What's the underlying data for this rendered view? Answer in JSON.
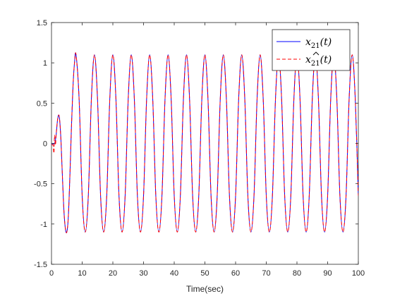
{
  "chart_data": {
    "type": "line",
    "title": "",
    "xlabel": "Time(sec)",
    "ylabel": "",
    "xlim": [
      0,
      100
    ],
    "ylim": [
      -1.5,
      1.5
    ],
    "xticks": [
      0,
      10,
      20,
      30,
      40,
      50,
      60,
      70,
      80,
      90,
      100
    ],
    "yticks": [
      -1.5,
      -1,
      -0.5,
      0,
      0.5,
      1,
      1.5
    ],
    "xtick_labels": [
      "0",
      "10",
      "20",
      "30",
      "40",
      "50",
      "60",
      "70",
      "80",
      "90",
      "100"
    ],
    "ytick_labels": [
      "-1.5",
      "-1",
      "-0.5",
      "0",
      "0.5",
      "1",
      "1.5"
    ],
    "grid": false,
    "legend_position": "top-right",
    "series": [
      {
        "name": "x21(t)",
        "legend_main": "x",
        "legend_sub": "21",
        "legend_tail": "(t)",
        "color": "#0000ff",
        "style": "solid",
        "x": [
          0,
          1,
          1.5,
          2,
          2.5,
          3,
          3.5,
          4,
          4.5,
          5,
          5.5,
          6,
          6.5,
          7,
          7.5,
          8,
          9,
          10,
          11,
          12,
          13,
          14,
          15,
          16,
          17,
          18,
          19,
          20,
          21,
          22,
          23,
          24,
          25,
          26,
          27,
          28,
          29,
          30,
          31,
          32,
          33,
          34,
          35,
          36,
          37,
          38,
          39,
          40,
          41,
          42,
          43,
          44,
          45,
          46,
          47,
          48,
          49,
          50,
          51,
          52,
          53,
          54,
          55,
          56,
          57,
          58,
          59,
          60,
          61,
          62,
          63,
          64,
          65,
          66,
          67,
          68,
          69,
          70,
          71,
          72,
          73,
          74,
          75,
          76,
          77,
          78,
          79,
          80,
          81,
          82,
          83,
          84,
          85,
          86,
          87,
          88,
          89,
          90,
          91,
          92,
          93,
          94,
          95,
          96,
          97,
          98,
          99,
          100
        ],
        "y": [
          0,
          0,
          0.1,
          0.3,
          0.34,
          0.1,
          -0.35,
          -0.8,
          -1.05,
          -1.1,
          -0.9,
          -0.4,
          0.2,
          0.7,
          1.0,
          1.1,
          0.55,
          -0.65,
          -1.1,
          -0.65,
          0.55,
          1.1,
          0.55,
          -0.65,
          -1.1,
          -0.65,
          0.55,
          1.1,
          0.55,
          -0.65,
          -1.1,
          -0.65,
          0.55,
          1.1,
          0.55,
          -0.65,
          -1.1,
          -0.65,
          0.55,
          1.1,
          0.55,
          -0.65,
          -1.1,
          -0.65,
          0.55,
          1.1,
          0.55,
          -0.65,
          -1.1,
          -0.65,
          0.55,
          1.1,
          0.55,
          -0.65,
          -1.1,
          -0.65,
          0.55,
          1.1,
          0.55,
          -0.65,
          -1.1,
          -0.65,
          0.55,
          1.1,
          0.55,
          -0.65,
          -1.1,
          -0.65,
          0.55,
          1.1,
          0.55,
          -0.65,
          -1.1,
          -0.65,
          0.55,
          1.1,
          0.55,
          -0.65,
          -1.1,
          -0.65,
          0.55,
          1.1,
          0.55,
          -0.65,
          -1.1,
          -0.65,
          0.55,
          1.1,
          0.55,
          -0.65,
          -1.1,
          -0.65,
          0.55,
          1.1,
          0.55,
          -0.65,
          -1.1,
          -0.65,
          0.55,
          1.1,
          0.55,
          -0.65,
          -1.1,
          -0.65,
          0.55,
          1.1,
          0.55,
          -0.65
        ]
      },
      {
        "name": "x21hat(t)",
        "legend_main": "x",
        "legend_sub": "21",
        "legend_tail": "(t)",
        "color": "#ff0000",
        "style": "dashed",
        "x": [
          0,
          0.5,
          0.8,
          1,
          1.3,
          1.5,
          2,
          2.5,
          3,
          3.5,
          4,
          4.5,
          5,
          5.5,
          6,
          6.5,
          7,
          7.5,
          8,
          9,
          10,
          11,
          12,
          13,
          14,
          15,
          16,
          17,
          18,
          19,
          20,
          21,
          22,
          23,
          24,
          25,
          26,
          27,
          28,
          29,
          30,
          31,
          32,
          33,
          34,
          35,
          36,
          37,
          38,
          39,
          40,
          41,
          42,
          43,
          44,
          45,
          46,
          47,
          48,
          49,
          50,
          51,
          52,
          53,
          54,
          55,
          56,
          57,
          58,
          59,
          60,
          61,
          62,
          63,
          64,
          65,
          66,
          67,
          68,
          69,
          70,
          71,
          72,
          73,
          74,
          75,
          76,
          77,
          78,
          79,
          80,
          81,
          82,
          83,
          84,
          85,
          86,
          87,
          88,
          89,
          90,
          91,
          92,
          93,
          94,
          95,
          96,
          97,
          98,
          99,
          100
        ],
        "y": [
          -0.02,
          -0.02,
          -0.12,
          0.1,
          -0.02,
          0.1,
          0.3,
          0.34,
          0.1,
          -0.35,
          -0.8,
          -1.05,
          -1.1,
          -0.9,
          -0.4,
          0.2,
          0.7,
          1.0,
          1.1,
          0.55,
          -0.65,
          -1.1,
          -0.65,
          0.55,
          1.1,
          0.55,
          -0.65,
          -1.1,
          -0.65,
          0.55,
          1.1,
          0.55,
          -0.65,
          -1.1,
          -0.65,
          0.55,
          1.1,
          0.55,
          -0.65,
          -1.1,
          -0.65,
          0.55,
          1.1,
          0.55,
          -0.65,
          -1.1,
          -0.65,
          0.55,
          1.1,
          0.55,
          -0.65,
          -1.1,
          -0.65,
          0.55,
          1.1,
          0.55,
          -0.65,
          -1.1,
          -0.65,
          0.55,
          1.1,
          0.55,
          -0.65,
          -1.1,
          -0.65,
          0.55,
          1.1,
          0.55,
          -0.65,
          -1.1,
          -0.65,
          0.55,
          1.1,
          0.55,
          -0.65,
          -1.1,
          -0.65,
          0.55,
          1.1,
          0.55,
          -0.65,
          -1.1,
          -0.65,
          0.55,
          1.1,
          0.55,
          -0.65,
          -1.1,
          -0.65,
          0.55,
          1.1,
          0.55,
          -0.65,
          -1.1,
          -0.65,
          0.55,
          1.1,
          0.55,
          -0.65,
          -1.1,
          -0.65,
          0.55,
          1.1,
          0.55,
          -0.65,
          -1.1,
          -0.65,
          0.55,
          1.1,
          0.55,
          -0.65
        ]
      }
    ]
  }
}
